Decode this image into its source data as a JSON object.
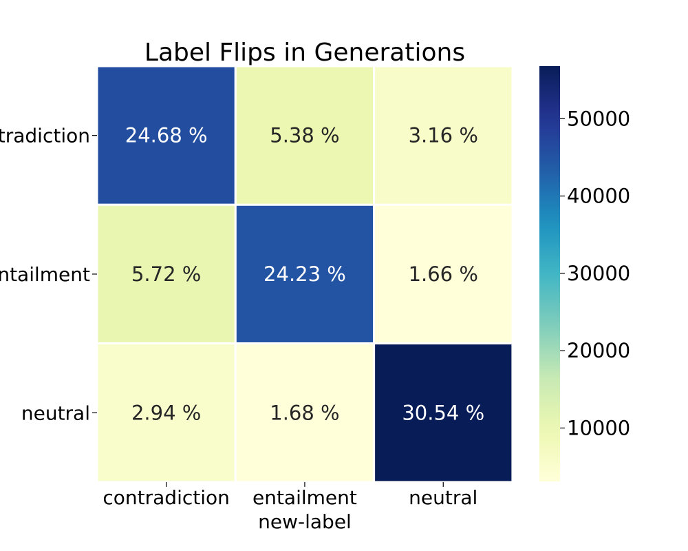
{
  "chart_data": {
    "type": "heatmap",
    "title": "Label Flips in Generations",
    "xlabel": "new-label",
    "ylabel": "",
    "x_categories": [
      "contradiction",
      "entailment",
      "neutral"
    ],
    "y_categories": [
      "contradiction",
      "entailment",
      "neutral"
    ],
    "cells": [
      [
        {
          "label": "24.68 %",
          "value": 45900
        },
        {
          "label": "5.38 %",
          "value": 10000
        },
        {
          "label": "3.16 %",
          "value": 5880
        }
      ],
      [
        {
          "label": "5.72 %",
          "value": 10640
        },
        {
          "label": "24.23 %",
          "value": 45070
        },
        {
          "label": "1.66 %",
          "value": 3090
        }
      ],
      [
        {
          "label": "2.94 %",
          "value": 5470
        },
        {
          "label": "1.68 %",
          "value": 3125
        },
        {
          "label": "30.54 %",
          "value": 56800
        }
      ]
    ],
    "colorbar": {
      "colormap": "YlGnBu",
      "range": [
        3090,
        56800
      ],
      "ticks": [
        10000,
        20000,
        30000,
        40000,
        50000
      ],
      "tick_labels": [
        "10000",
        "20000",
        "30000",
        "40000",
        "50000"
      ]
    }
  }
}
